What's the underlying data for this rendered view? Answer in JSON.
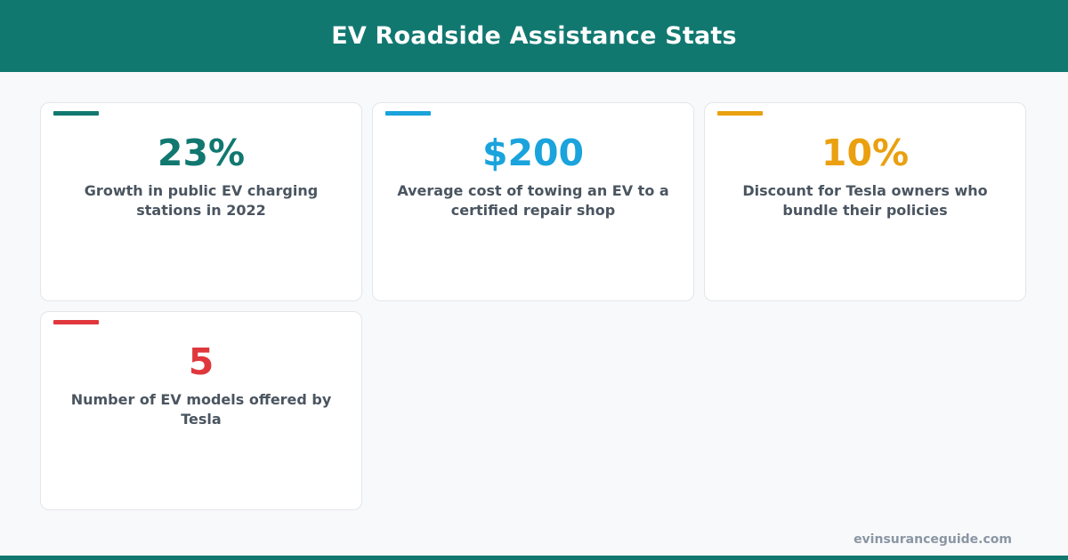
{
  "header": {
    "title": "EV Roadside Assistance Stats",
    "background_color": "#117870"
  },
  "cards": [
    {
      "value": "23%",
      "label": "Growth in public EV charging stations in 2022",
      "accent_color": "#117870"
    },
    {
      "value": "$200",
      "label": "Average cost of towing an EV to a certified repair shop",
      "accent_color": "#1aa3dc"
    },
    {
      "value": "10%",
      "label": "Discount for Tesla owners who bundle their policies",
      "accent_color": "#eaa00f"
    },
    {
      "value": "5",
      "label": "Number of EV models offered by Tesla",
      "accent_color": "#e0373c"
    }
  ],
  "footer": {
    "site": "evinsuranceguide.com"
  }
}
